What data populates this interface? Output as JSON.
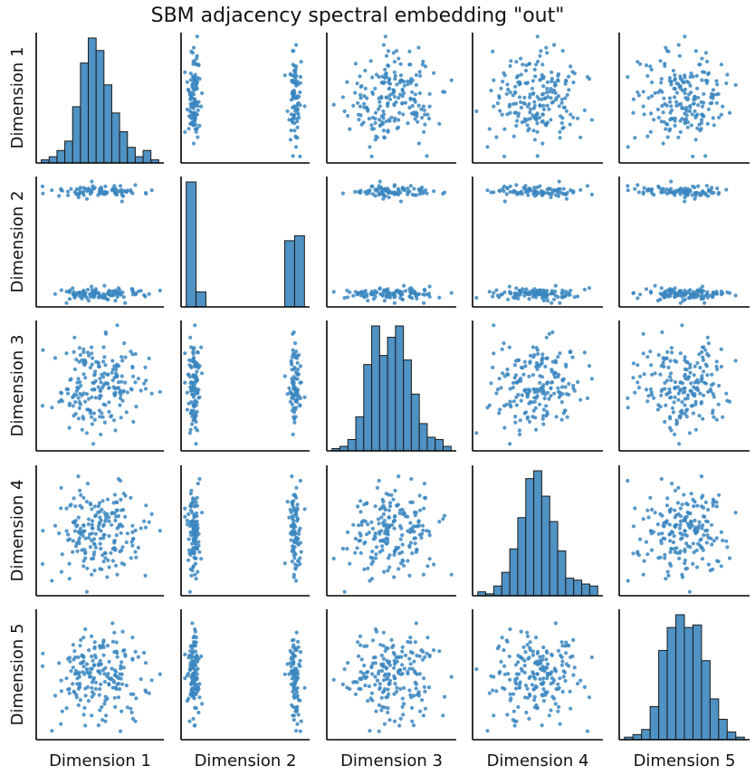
{
  "chart_data": {
    "type": "pairplot",
    "title": "SBM adjacency spectral embedding \"out\"",
    "variables": [
      "Dimension 1",
      "Dimension 2",
      "Dimension 3",
      "Dimension 4",
      "Dimension 5"
    ],
    "n_points": 200,
    "color": "#3a86bf",
    "bar_color": "#4f92c4",
    "edge_color": "#1a1a1a",
    "ticks_shown": false,
    "grid": false,
    "diagonal": {
      "Dimension 1": [
        1,
        2,
        4,
        7,
        18,
        32,
        40,
        36,
        25,
        16,
        10,
        5,
        2,
        4,
        1
      ],
      "Dimension 2": [
        100,
        12,
        0,
        0,
        0,
        0,
        0,
        0,
        0,
        0,
        53,
        57
      ],
      "Dimension 3": [
        1,
        2,
        5,
        15,
        38,
        55,
        42,
        50,
        55,
        40,
        25,
        12,
        6,
        5,
        2
      ],
      "Dimension 4": [
        2,
        1,
        5,
        12,
        24,
        40,
        60,
        64,
        51,
        38,
        23,
        9,
        8,
        6,
        5
      ],
      "Dimension 5": [
        1,
        2,
        4,
        13,
        35,
        44,
        49,
        44,
        45,
        31,
        16,
        8,
        3,
        1
      ]
    }
  }
}
